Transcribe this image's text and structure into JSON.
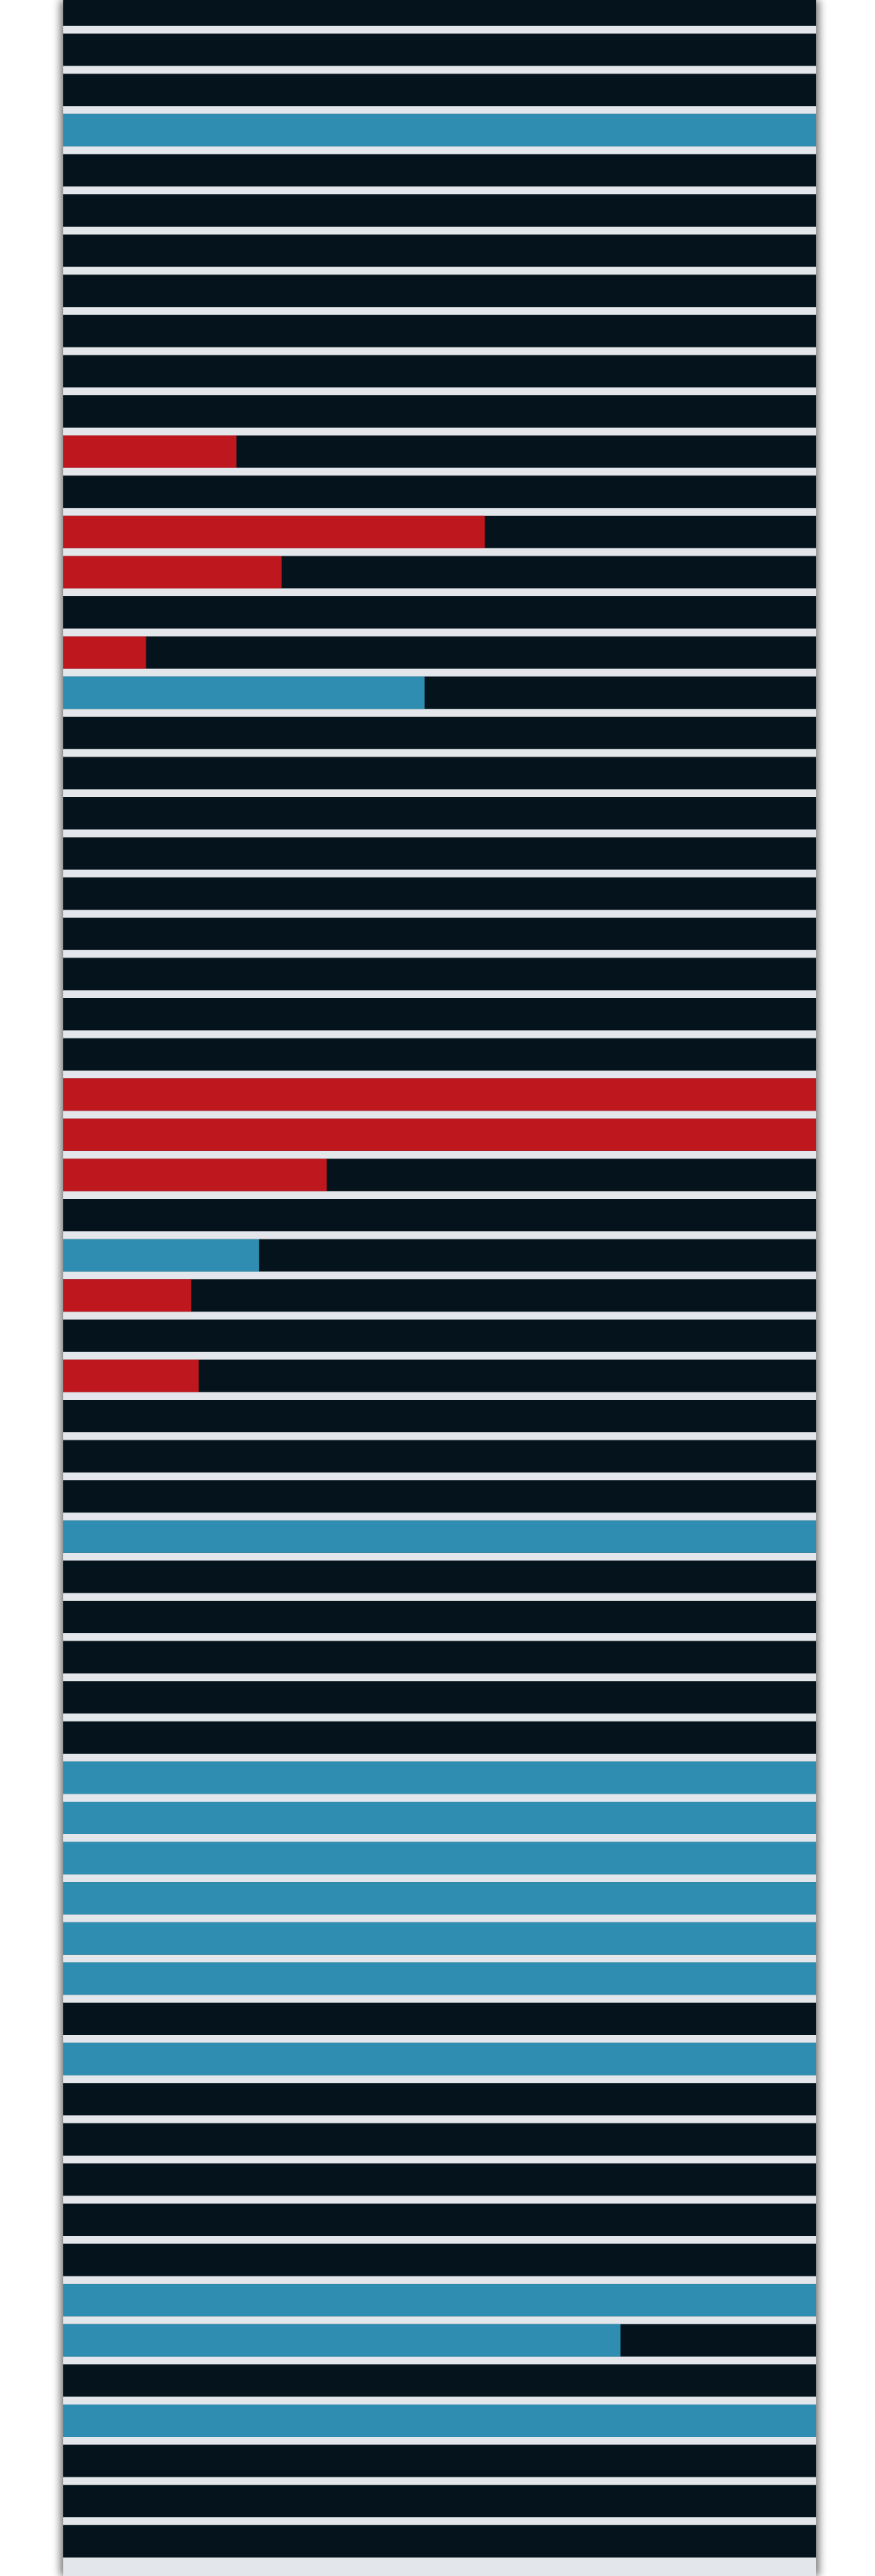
{
  "chart_data": {
    "type": "bar",
    "orientation": "horizontal",
    "title": "",
    "xlabel": "",
    "ylabel": "",
    "xlim": [
      0,
      1
    ],
    "grid": false,
    "legend": "none",
    "colors": {
      "track": "#05141c",
      "separator": "#e3e6ea",
      "blue": "#2e8db0",
      "red": "#be171e"
    },
    "bars": [
      {
        "value": 0,
        "color": "blue"
      },
      {
        "value": 0,
        "color": "blue"
      },
      {
        "value": 0,
        "color": "blue"
      },
      {
        "value": 1.0,
        "color": "blue"
      },
      {
        "value": 0,
        "color": "blue"
      },
      {
        "value": 0,
        "color": "blue"
      },
      {
        "value": 0,
        "color": "blue"
      },
      {
        "value": 0,
        "color": "blue"
      },
      {
        "value": 0,
        "color": "blue"
      },
      {
        "value": 0,
        "color": "blue"
      },
      {
        "value": 0,
        "color": "blue"
      },
      {
        "value": 0.23,
        "color": "red"
      },
      {
        "value": 0,
        "color": "red"
      },
      {
        "value": 0.56,
        "color": "red"
      },
      {
        "value": 0.29,
        "color": "red"
      },
      {
        "value": 0,
        "color": "red"
      },
      {
        "value": 0.11,
        "color": "red"
      },
      {
        "value": 0.48,
        "color": "blue"
      },
      {
        "value": 0,
        "color": "blue"
      },
      {
        "value": 0,
        "color": "blue"
      },
      {
        "value": 0,
        "color": "blue"
      },
      {
        "value": 0,
        "color": "blue"
      },
      {
        "value": 0,
        "color": "blue"
      },
      {
        "value": 0,
        "color": "blue"
      },
      {
        "value": 0,
        "color": "blue"
      },
      {
        "value": 0,
        "color": "blue"
      },
      {
        "value": 0,
        "color": "blue"
      },
      {
        "value": 1.0,
        "color": "red"
      },
      {
        "value": 1.0,
        "color": "red"
      },
      {
        "value": 0.35,
        "color": "red"
      },
      {
        "value": 0,
        "color": "blue"
      },
      {
        "value": 0.26,
        "color": "blue"
      },
      {
        "value": 0.17,
        "color": "red"
      },
      {
        "value": 0,
        "color": "red"
      },
      {
        "value": 0.18,
        "color": "red"
      },
      {
        "value": 0,
        "color": "blue"
      },
      {
        "value": 0,
        "color": "blue"
      },
      {
        "value": 0,
        "color": "blue"
      },
      {
        "value": 1.0,
        "color": "blue"
      },
      {
        "value": 0,
        "color": "blue"
      },
      {
        "value": 0,
        "color": "blue"
      },
      {
        "value": 0,
        "color": "blue"
      },
      {
        "value": 0,
        "color": "blue"
      },
      {
        "value": 0,
        "color": "blue"
      },
      {
        "value": 1.0,
        "color": "blue"
      },
      {
        "value": 1.0,
        "color": "blue"
      },
      {
        "value": 1.0,
        "color": "blue"
      },
      {
        "value": 1.0,
        "color": "blue"
      },
      {
        "value": 1.0,
        "color": "blue"
      },
      {
        "value": 1.0,
        "color": "blue"
      },
      {
        "value": 0,
        "color": "blue"
      },
      {
        "value": 1.0,
        "color": "blue"
      },
      {
        "value": 0,
        "color": "blue"
      },
      {
        "value": 0,
        "color": "blue"
      },
      {
        "value": 0,
        "color": "blue"
      },
      {
        "value": 0,
        "color": "blue"
      },
      {
        "value": 0,
        "color": "blue"
      },
      {
        "value": 1.0,
        "color": "blue"
      },
      {
        "value": 0.74,
        "color": "blue"
      },
      {
        "value": 0,
        "color": "blue"
      },
      {
        "value": 1.0,
        "color": "blue"
      },
      {
        "value": 0,
        "color": "blue"
      },
      {
        "value": 0,
        "color": "blue"
      },
      {
        "value": 0,
        "color": "blue"
      }
    ]
  }
}
